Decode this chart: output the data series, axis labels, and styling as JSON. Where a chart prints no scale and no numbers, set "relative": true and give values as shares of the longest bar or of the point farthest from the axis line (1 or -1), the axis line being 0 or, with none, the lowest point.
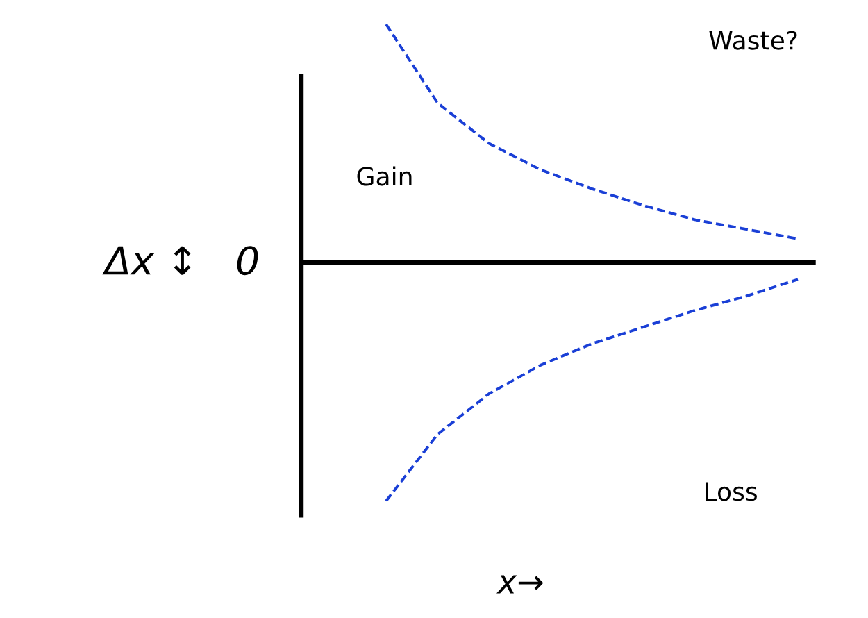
{
  "chart_data": {
    "type": "line",
    "relative": true,
    "xlabel": "x→",
    "ylabel": "Δx ↕   0",
    "categories": [
      null,
      null,
      null,
      null,
      null,
      null,
      null,
      null,
      null
    ],
    "series": [
      {
        "color": "#1a3fd6",
        "values": [
          1.0,
          0.67,
          0.5,
          0.39,
          0.31,
          0.24,
          0.18,
          0.14,
          0.1
        ]
      },
      {
        "color": "#1a3fd6",
        "values": [
          -1.0,
          -0.72,
          -0.55,
          -0.43,
          -0.34,
          -0.27,
          -0.2,
          -0.14,
          -0.07
        ]
      }
    ],
    "annotations": [
      "Waste?",
      "Gain",
      "Loss"
    ],
    "line_style": "dashed",
    "marker": "none",
    "grid": false,
    "legend": false
  }
}
